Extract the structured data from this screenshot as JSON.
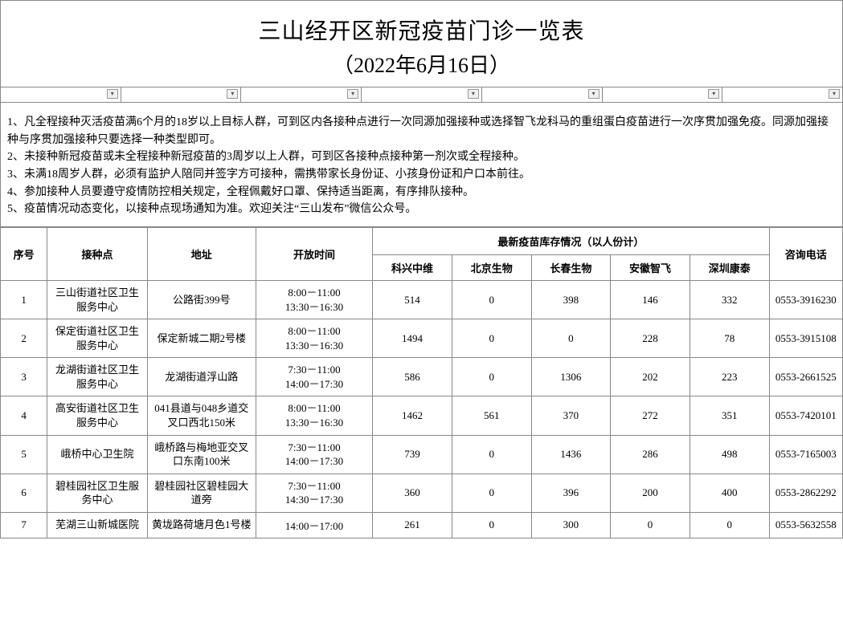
{
  "title": "三山经开区新冠疫苗门诊一览表",
  "subtitle": "（2022年6月16日）",
  "filter_count": 7,
  "notes": [
    "1、凡全程接种灭活疫苗满6个月的18岁以上目标人群，可到区内各接种点进行一次同源加强接种或选择智飞龙科马的重组蛋白疫苗进行一次序贯加强免疫。同源加强接种与序贯加强接种只要选择一种类型即可。",
    "2、未接种新冠疫苗或未全程接种新冠疫苗的3周岁以上人群，可到区各接种点接种第一剂次或全程接种。",
    "3、未满18周岁人群，必须有监护人陪同并签字方可接种，需携带家长身份证、小孩身份证和户口本前往。",
    "4、参加接种人员要遵守疫情防控相关规定，全程佩戴好口罩、保持适当距离，有序排队接种。",
    "5、疫苗情况动态变化，以接种点现场通知为准。欢迎关注“三山发布”微信公众号。"
  ],
  "columns": {
    "seq": "序号",
    "site": "接种点",
    "addr": "地址",
    "time": "开放时间",
    "stock_header": "最新疫苗库存情况（以人份计）",
    "phone": "咨询电话",
    "vaccines": [
      "科兴中维",
      "北京生物",
      "长春生物",
      "安徽智飞",
      "深圳康泰"
    ]
  },
  "rows": [
    {
      "seq": "1",
      "site": "三山街道社区卫生服务中心",
      "addr": "公路街399号",
      "time": "8:00－11:00\n13:30－16:30",
      "v": [
        "514",
        "0",
        "398",
        "146",
        "332"
      ],
      "phone": "0553-3916230"
    },
    {
      "seq": "2",
      "site": "保定街道社区卫生服务中心",
      "addr": "保定新城二期2号楼",
      "time": "8:00－11:00\n13:30－16:30",
      "v": [
        "1494",
        "0",
        "0",
        "228",
        "78"
      ],
      "phone": "0553-3915108"
    },
    {
      "seq": "3",
      "site": "龙湖街道社区卫生服务中心",
      "addr": "龙湖街道浮山路",
      "time": "7:30－11:00\n14:00－17:30",
      "v": [
        "586",
        "0",
        "1306",
        "202",
        "223"
      ],
      "phone": "0553-2661525"
    },
    {
      "seq": "4",
      "site": "高安街道社区卫生服务中心",
      "addr": "041县道与048乡道交叉口西北150米",
      "time": "8:00－11:00\n13:30－16:30",
      "v": [
        "1462",
        "561",
        "370",
        "272",
        "351"
      ],
      "phone": "0553-7420101"
    },
    {
      "seq": "5",
      "site": "峨桥中心卫生院",
      "addr": "峨桥路与梅地亚交叉口东南100米",
      "time": "7:30－11:00\n14:00－17:30",
      "v": [
        "739",
        "0",
        "1436",
        "286",
        "498"
      ],
      "phone": "0553-7165003"
    },
    {
      "seq": "6",
      "site": "碧桂园社区卫生服务中心",
      "addr": "碧桂园社区碧桂园大道旁",
      "time": "7:30－11:00\n14:30－17:30",
      "v": [
        "360",
        "0",
        "396",
        "200",
        "400"
      ],
      "phone": "0553-2862292"
    },
    {
      "seq": "7",
      "site": "芜湖三山新城医院",
      "addr": "黄垅路荷塘月色1号楼",
      "time": "14:00－17:00",
      "v": [
        "261",
        "0",
        "300",
        "0",
        "0"
      ],
      "phone": "0553-5632558"
    }
  ],
  "colors": {
    "border": "#888888",
    "background": "#ffffff",
    "text": "#000000"
  },
  "font_sizes": {
    "title": 28,
    "subtitle": 26,
    "notes": 14,
    "table": 13
  }
}
